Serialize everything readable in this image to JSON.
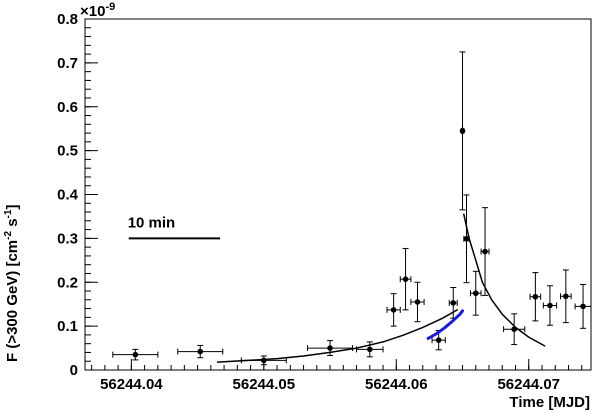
{
  "chart_data": {
    "type": "scatter",
    "xlabel": "Time [MJD]",
    "ylabel": "F (>300 GeV) [cm^{-2} s^{-1}]",
    "ylabel_parts": {
      "main": "F (>300 GeV) [cm",
      "exp1": "-2",
      "mid": " s",
      "exp2": "-1",
      "end": "]"
    },
    "y_multiplier": {
      "base": "×10",
      "exp": "-9"
    },
    "xlim": [
      56244.0365,
      56244.0747
    ],
    "ylim": [
      0,
      0.8
    ],
    "x_ticks": [
      56244.04,
      56244.05,
      56244.06,
      56244.07
    ],
    "x_tick_labels": [
      "56244.04",
      "56244.05",
      "56244.06",
      "56244.07"
    ],
    "x_minor_step": 0.001,
    "y_ticks": [
      0,
      0.1,
      0.2,
      0.3,
      0.4,
      0.5,
      0.6,
      0.7,
      0.8
    ],
    "y_tick_labels": [
      "0",
      "0.1",
      "0.2",
      "0.3",
      "0.4",
      "0.5",
      "0.6",
      "0.7",
      "0.8"
    ],
    "y_minor_step": 0.02,
    "grid": false,
    "series": [
      {
        "style": "points-with-error-bars",
        "color": "#000000",
        "points": [
          {
            "x": 56244.0403,
            "y": 0.035,
            "xerr": 0.0017,
            "yerr": 0.012
          },
          {
            "x": 56244.0452,
            "y": 0.042,
            "xerr": 0.0017,
            "yerr": 0.014
          },
          {
            "x": 56244.05,
            "y": 0.022,
            "xerr": 0.0017,
            "yerr": 0.01
          },
          {
            "x": 56244.055,
            "y": 0.05,
            "xerr": 0.0017,
            "yerr": 0.017
          },
          {
            "x": 56244.058,
            "y": 0.047,
            "xerr": 0.001,
            "yerr": 0.017
          },
          {
            "x": 56244.0598,
            "y": 0.137,
            "xerr": 0.0005,
            "yerr": 0.037
          },
          {
            "x": 56244.0607,
            "y": 0.207,
            "xerr": 0.0004,
            "yerr": 0.07
          },
          {
            "x": 56244.0616,
            "y": 0.155,
            "xerr": 0.0005,
            "yerr": 0.045
          },
          {
            "x": 56244.0632,
            "y": 0.068,
            "xerr": 0.0005,
            "yerr": 0.022
          },
          {
            "x": 56244.0643,
            "y": 0.153,
            "xerr": 0.0003,
            "yerr": 0.035
          },
          {
            "x": 56244.065,
            "y": 0.545,
            "xerr": 0.0001,
            "yerr": 0.18
          },
          {
            "x": 56244.0653,
            "y": 0.299,
            "xerr": 0.0002,
            "yerr": 0.1
          },
          {
            "x": 56244.066,
            "y": 0.175,
            "xerr": 0.0004,
            "yerr": 0.05
          },
          {
            "x": 56244.0667,
            "y": 0.27,
            "xerr": 0.0003,
            "yerr": 0.1
          },
          {
            "x": 56244.0689,
            "y": 0.093,
            "xerr": 0.0008,
            "yerr": 0.035
          },
          {
            "x": 56244.0705,
            "y": 0.167,
            "xerr": 0.0004,
            "yerr": 0.055
          },
          {
            "x": 56244.0716,
            "y": 0.147,
            "xerr": 0.0005,
            "yerr": 0.045
          },
          {
            "x": 56244.0728,
            "y": 0.168,
            "xerr": 0.0004,
            "yerr": 0.06
          },
          {
            "x": 56244.0741,
            "y": 0.145,
            "xerr": 0.0006,
            "yerr": 0.05
          }
        ]
      },
      {
        "style": "curve",
        "color": "#000000",
        "points": [
          [
            56244.0465,
            0.018
          ],
          [
            56244.049,
            0.022
          ],
          [
            56244.051,
            0.026
          ],
          [
            56244.053,
            0.032
          ],
          [
            56244.055,
            0.04
          ],
          [
            56244.057,
            0.05
          ],
          [
            56244.059,
            0.064
          ],
          [
            56244.0605,
            0.079
          ],
          [
            56244.062,
            0.097
          ],
          [
            56244.0635,
            0.118
          ],
          [
            56244.0646,
            0.137
          ]
        ]
      },
      {
        "style": "curve",
        "color": "#000000",
        "points": [
          [
            56244.0651,
            0.355
          ],
          [
            56244.0655,
            0.3
          ],
          [
            56244.066,
            0.25
          ],
          [
            56244.0665,
            0.2
          ],
          [
            56244.0672,
            0.16
          ],
          [
            56244.068,
            0.127
          ],
          [
            56244.069,
            0.097
          ],
          [
            56244.07,
            0.075
          ],
          [
            56244.0712,
            0.055
          ]
        ]
      },
      {
        "style": "curve",
        "color": "#1a1adf",
        "points": [
          [
            56244.0624,
            0.072
          ],
          [
            56244.063,
            0.082
          ],
          [
            56244.0636,
            0.095
          ],
          [
            56244.0642,
            0.11
          ],
          [
            56244.0648,
            0.127
          ],
          [
            56244.065,
            0.135
          ]
        ]
      }
    ],
    "annotations": [
      {
        "text": "10 min",
        "scale_bar": {
          "x_start": 56244.0398,
          "x_end": 56244.0467,
          "y": 0.3
        }
      }
    ]
  }
}
